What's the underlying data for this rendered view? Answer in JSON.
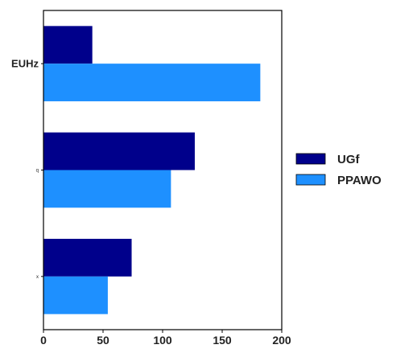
{
  "chart_data": {
    "type": "bar",
    "orientation": "horizontal",
    "categories": [
      "EUHz",
      "q",
      "x"
    ],
    "series": [
      {
        "name": "UGf",
        "values": [
          41,
          127,
          74
        ],
        "color": "#00008b"
      },
      {
        "name": "PPAWO",
        "values": [
          182,
          107,
          54
        ],
        "color": "#1e90ff"
      }
    ],
    "xlim": [
      0,
      200
    ],
    "xticks": [
      0,
      50,
      100,
      150,
      200
    ],
    "xlabel": "",
    "ylabel": "",
    "title": "",
    "grid": false,
    "legend_position": "right"
  }
}
